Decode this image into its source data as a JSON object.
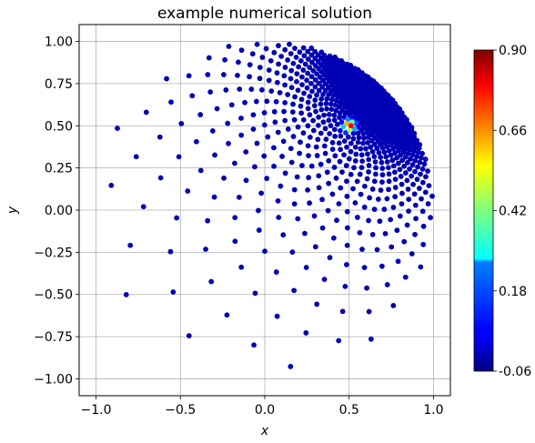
{
  "chart_data": {
    "type": "scatter",
    "title": "example numerical solution",
    "xlabel": "x",
    "ylabel": "y",
    "xlim": [
      -1.1,
      1.1
    ],
    "ylim": [
      -1.1,
      1.1
    ],
    "grid": true,
    "xticks": [
      -1.0,
      -0.5,
      0.0,
      0.5,
      1.0
    ],
    "xtick_labels": [
      "−1.0",
      "−0.5",
      "0.0",
      "0.5",
      "1.0"
    ],
    "yticks": [
      -1.0,
      -0.75,
      -0.5,
      -0.25,
      0.0,
      0.25,
      0.5,
      0.75,
      1.0
    ],
    "ytick_labels": [
      "−1.00",
      "−0.75",
      "−0.50",
      "−0.25",
      "0.00",
      "0.25",
      "0.50",
      "0.75",
      "1.00"
    ],
    "colormap": "jet",
    "colorbar": {
      "min": -0.06,
      "max": 0.9,
      "ticks": [
        -0.06,
        0.18,
        0.42,
        0.66,
        0.9
      ],
      "tick_labels": [
        "-0.06",
        "0.18",
        "0.42",
        "0.66",
        "0.90"
      ],
      "placement": "right"
    },
    "domain": "unit disk",
    "n_points": 1000,
    "point_distribution": "Fibonacci-spiral disk points, mapped to cluster densely around the peak",
    "peak": {
      "x": 0.5,
      "y": 0.5,
      "value": 0.9
    },
    "background_value": 0.0,
    "point_color_default": "#0000b4"
  }
}
